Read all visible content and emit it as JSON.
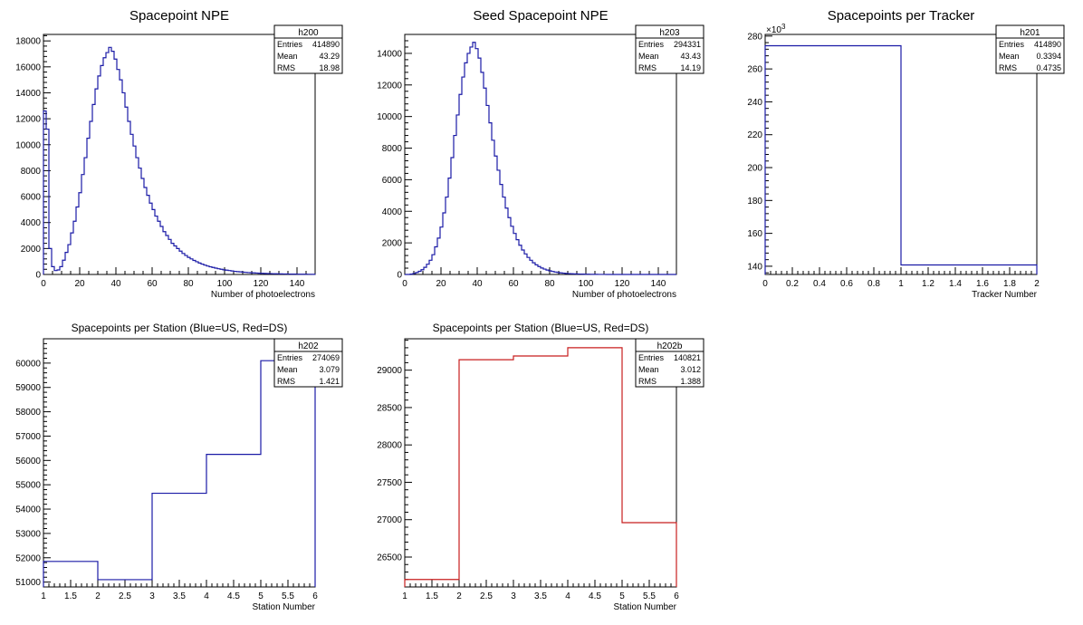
{
  "chart_data": [
    {
      "type": "histogram",
      "title": "Spacepoint NPE",
      "xlabel": "Number of photoelectrons",
      "ylabel": "",
      "xlim": [
        0,
        150
      ],
      "ylim": [
        0,
        18500
      ],
      "xticks": [
        0,
        20,
        40,
        60,
        80,
        100,
        120,
        140
      ],
      "yticks": [
        0,
        2000,
        4000,
        6000,
        8000,
        10000,
        12000,
        14000,
        16000,
        18000
      ],
      "bin_width": 1.5,
      "line_color": "#1a1aa6",
      "stats": {
        "name": "h200",
        "rows": [
          [
            "Entries",
            "414890"
          ],
          [
            "Mean",
            "43.29"
          ],
          [
            "RMS",
            "18.98"
          ]
        ]
      },
      "values": [
        12600,
        11200,
        2000,
        600,
        300,
        350,
        600,
        1100,
        1700,
        2300,
        3200,
        4100,
        5200,
        6300,
        7700,
        9000,
        10500,
        11800,
        13100,
        14300,
        15300,
        16100,
        16700,
        17100,
        17500,
        17200,
        16600,
        15800,
        15000,
        14000,
        12900,
        11800,
        10800,
        9900,
        9000,
        8200,
        7400,
        6700,
        6100,
        5500,
        5000,
        4500,
        4100,
        3700,
        3300,
        3000,
        2700,
        2400,
        2200,
        2000,
        1800,
        1620,
        1460,
        1320,
        1200,
        1080,
        980,
        880,
        800,
        720,
        650,
        590,
        540,
        490,
        440,
        400,
        360,
        330,
        300,
        270,
        240,
        220,
        200,
        180,
        160,
        145,
        130,
        120,
        108,
        98,
        88,
        80,
        72,
        65,
        58,
        52,
        47,
        42,
        38,
        34,
        30,
        27,
        24,
        22,
        20,
        18,
        16,
        14,
        12,
        10
      ]
    },
    {
      "type": "histogram",
      "title": "Seed Spacepoint NPE",
      "xlabel": "Number of photoelectrons",
      "ylabel": "",
      "xlim": [
        0,
        150
      ],
      "ylim": [
        0,
        15200
      ],
      "xticks": [
        0,
        20,
        40,
        60,
        80,
        100,
        120,
        140
      ],
      "yticks": [
        0,
        2000,
        4000,
        6000,
        8000,
        10000,
        12000,
        14000
      ],
      "bin_width": 1.5,
      "line_color": "#1a1aa6",
      "stats": {
        "name": "h203",
        "rows": [
          [
            "Entries",
            "294331"
          ],
          [
            "Mean",
            "43.43"
          ],
          [
            "RMS",
            "14.19"
          ]
        ]
      },
      "values": [
        0,
        0,
        20,
        60,
        120,
        200,
        300,
        450,
        650,
        900,
        1250,
        1750,
        2300,
        3000,
        3900,
        4900,
        6100,
        7400,
        8800,
        10100,
        11400,
        12500,
        13400,
        14000,
        14400,
        14700,
        14300,
        13700,
        12800,
        11800,
        10700,
        9600,
        8500,
        7500,
        6600,
        5700,
        4900,
        4200,
        3600,
        3050,
        2600,
        2200,
        1850,
        1550,
        1300,
        1080,
        900,
        740,
        610,
        500,
        410,
        340,
        280,
        230,
        190,
        155,
        125,
        100,
        82,
        66,
        54,
        44,
        36,
        30,
        24,
        20,
        16,
        13,
        10,
        8,
        6,
        5,
        4,
        3,
        2,
        2,
        1,
        1,
        1,
        0,
        0,
        0,
        0,
        0,
        0,
        0,
        0,
        0,
        0,
        0,
        0,
        0,
        0,
        0,
        0,
        0,
        0,
        0,
        0,
        0
      ]
    },
    {
      "type": "histogram",
      "title": "Spacepoints per Tracker",
      "xlabel": "Tracker Number",
      "ylabel": "",
      "xlim": [
        0,
        2
      ],
      "ylim": [
        135,
        281
      ],
      "xticks": [
        0,
        0.2,
        0.4,
        0.6,
        0.8,
        1,
        1.2,
        1.4,
        1.6,
        1.8,
        2
      ],
      "yticks": [
        140,
        160,
        180,
        200,
        220,
        240,
        260,
        280
      ],
      "yscale_label": "×10",
      "yscale_exp": "3",
      "line_color": "#1a1aa6",
      "stats": {
        "name": "h201",
        "rows": [
          [
            "Entries",
            "414890"
          ],
          [
            "Mean",
            "0.3394"
          ],
          [
            "RMS",
            "0.4735"
          ]
        ]
      },
      "bins": [
        [
          0,
          1,
          274.1
        ],
        [
          1,
          2,
          140.8
        ]
      ]
    },
    {
      "type": "histogram",
      "title": "Spacepoints per Station (Blue=US, Red=DS)",
      "xlabel": "Station Number",
      "ylabel": "",
      "xlim": [
        1,
        6
      ],
      "ylim": [
        50800,
        61000
      ],
      "xticks": [
        1,
        1.5,
        2,
        2.5,
        3,
        3.5,
        4,
        4.5,
        5,
        5.5,
        6
      ],
      "yticks": [
        51000,
        52000,
        53000,
        54000,
        55000,
        56000,
        57000,
        58000,
        59000,
        60000
      ],
      "line_color": "#1a1aa6",
      "stats": {
        "name": "h202",
        "rows": [
          [
            "Entries",
            "274069"
          ],
          [
            "Mean",
            "3.079"
          ],
          [
            "RMS",
            "1.421"
          ]
        ]
      },
      "bins": [
        [
          1,
          2,
          51850
        ],
        [
          2,
          3,
          51100
        ],
        [
          3,
          4,
          54650
        ],
        [
          4,
          5,
          56250
        ],
        [
          5,
          6,
          60100
        ]
      ]
    },
    {
      "type": "histogram",
      "title": "Spacepoints per Station (Blue=US, Red=DS)",
      "xlabel": "Station Number",
      "ylabel": "",
      "xlim": [
        1,
        6
      ],
      "ylim": [
        26100,
        29420
      ],
      "xticks": [
        1,
        1.5,
        2,
        2.5,
        3,
        3.5,
        4,
        4.5,
        5,
        5.5,
        6
      ],
      "yticks": [
        26500,
        27000,
        27500,
        28000,
        28500,
        29000
      ],
      "line_color": "#c81e1e",
      "stats": {
        "name": "h202b",
        "rows": [
          [
            "Entries",
            "140821"
          ],
          [
            "Mean",
            "3.012"
          ],
          [
            "RMS",
            "1.388"
          ]
        ]
      },
      "bins": [
        [
          1,
          2,
          26200
        ],
        [
          2,
          3,
          29140
        ],
        [
          3,
          4,
          29190
        ],
        [
          4,
          5,
          29300
        ],
        [
          5,
          6,
          26960
        ]
      ]
    }
  ]
}
